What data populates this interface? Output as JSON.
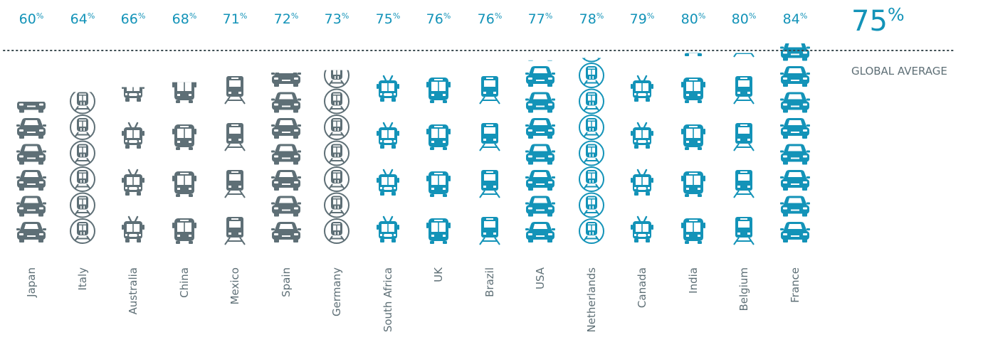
{
  "chart_data": {
    "type": "bar",
    "categories": [
      "Japan",
      "Italy",
      "Australia",
      "China",
      "Mexico",
      "Spain",
      "Germany",
      "South Africa",
      "UK",
      "Brazil",
      "USA",
      "Netherlands",
      "Canada",
      "India",
      "Belgium",
      "France"
    ],
    "values": [
      60,
      64,
      66,
      68,
      71,
      72,
      73,
      75,
      76,
      76,
      77,
      78,
      79,
      80,
      80,
      84
    ],
    "value_labels": [
      "60",
      "64",
      "66",
      "68",
      "71",
      "72",
      "73",
      "75",
      "76",
      "76",
      "77",
      "78",
      "79",
      "80",
      "80",
      "84"
    ],
    "value_unit": "%",
    "icons": [
      "car-icon",
      "metro-icon",
      "trolleybus-icon",
      "bus-icon",
      "train-icon",
      "car-icon",
      "metro-icon",
      "trolleybus-icon",
      "bus-icon",
      "train-icon",
      "car-icon",
      "metro-icon",
      "trolleybus-icon",
      "bus-icon",
      "train-icon",
      "car-icon"
    ],
    "reference_line": {
      "value_label": "75",
      "unit": "%",
      "label": "GLOBAL AVERAGE",
      "style": "dotted"
    },
    "colors": {
      "below_average": "#5e6f76",
      "at_or_above_average": "#1393b8",
      "text_accent": "#1393b8",
      "text_muted": "#5e6f76"
    }
  }
}
